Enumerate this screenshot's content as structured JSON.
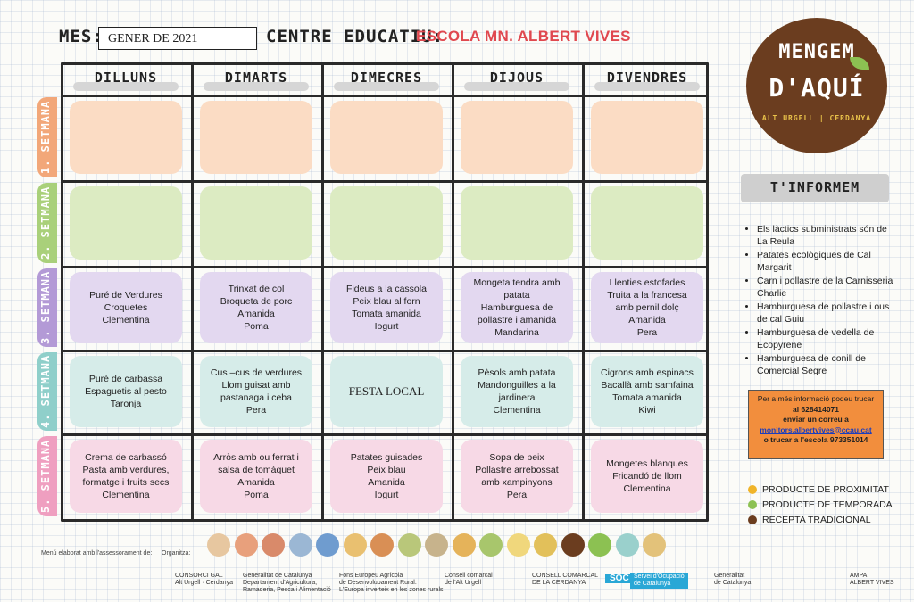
{
  "header": {
    "mes_label": "MES:",
    "mes_value": "GENER DE 2021",
    "centre_label": "CENTRE EDUCATIU:",
    "school_name": "ESCOLA MN. ALBERT VIVES"
  },
  "days": [
    "DILLUNS",
    "DIMARTS",
    "DIMECRES",
    "DIJOUS",
    "DIVENDRES"
  ],
  "weeks": [
    {
      "label": "1. SETMANA",
      "color": "#f2a779",
      "cell_color": "#fbdcc4",
      "menus": [
        "",
        "",
        "",
        "",
        ""
      ]
    },
    {
      "label": "2. SETMANA",
      "color": "#a9d07a",
      "cell_color": "#dcebc2",
      "menus": [
        "",
        "",
        "",
        "",
        ""
      ]
    },
    {
      "label": "3. SETMANA",
      "color": "#b39ad6",
      "cell_color": "#e3d8f0",
      "menus": [
        "Puré de Verdures\nCroquetes\nClementina",
        "Trinxat de col\nBroqueta de porc\nAmanida\nPoma",
        "Fideus a la cassola\nPeix blau al forn\nTomata amanida\nIogurt",
        "Mongeta tendra amb\npatata\nHamburguesa de\npollastre i amanida\nMandarina",
        "Llenties estofades\nTruita a la francesa\namb pernil dolç\nAmanida\nPera"
      ]
    },
    {
      "label": "4. SETMANA",
      "color": "#8fcfca",
      "cell_color": "#d6ece9",
      "menus": [
        "Puré de carbassa\nEspaguetis al pesto\nTaronja",
        "Cus –cus de verdures\nLlom guisat amb\npastanaga i ceba\nPera",
        "FESTA LOCAL",
        "Pèsols amb patata\nMandonguilles a la\njardinera\nClementina",
        "Cigrons amb espinacs\nBacallà amb samfaina\nTomata amanida\nKiwi"
      ]
    },
    {
      "label": "5. SETMANA",
      "color": "#ef9fc0",
      "cell_color": "#f7d9e6",
      "menus": [
        "Crema de carbassó\nPasta amb verdures,\nformatge i fruits secs\nClementina",
        "Arròs amb ou ferrat i\nsalsa de tomàquet\nAmanida\nPoma",
        "Patates guisades\nPeix blau\nAmanida\nIogurt",
        "Sopa de peix\nPollastre arrebossat\namb xampinyons\nPera",
        "Mongetes blanques\nFricandó de llom\nClementina"
      ]
    }
  ],
  "logo": {
    "line1": "MENGEM",
    "line2": "D'AQUÍ",
    "line3": "ALT URGELL | CERDANYA"
  },
  "info": {
    "title": "T'INFORMEM",
    "items": [
      "Els làctics subministrats són de La Reula",
      "Patates ecològiques de Cal Margarit",
      "Carn i pollastre de la Carnisseria Charlie",
      "Hamburguesa de pollastre i ous de cal Guiu",
      "Hamburguesa de vedella de Ecopyrene",
      "Hamburguesa de conill de Comercial Segre"
    ]
  },
  "contact": {
    "line1": "Per a més informació podeu trucar",
    "line2": "al 628414071",
    "line3": "enviar un correu a",
    "email": "monitors.albertvives@ccau.cat",
    "line4": "o trucar a l'escola 973351014"
  },
  "legend": [
    {
      "text": "PRODUCTE DE PROXIMITAT",
      "color": "#f0b429",
      "num": "1"
    },
    {
      "text": "PRODUCTE DE TEMPORADA",
      "color": "#8cc152",
      "num": "2"
    },
    {
      "text": "RECEPTA TRADICIONAL",
      "color": "#6b3d1f",
      "num": "3"
    }
  ],
  "footer": {
    "note": "Menú elaborat amb l'assessorament de:",
    "organitza": "Organitza:",
    "icon_colors": [
      "#e7c7a0",
      "#e8a07c",
      "#d98a6a",
      "#9bb7d4",
      "#6f9ccf",
      "#e9c070",
      "#d98f55",
      "#b9c77a",
      "#c7b38c",
      "#e5b35a",
      "#a8c66c",
      "#f0d77c",
      "#e2c05a",
      "#6b3d1f",
      "#8cc152",
      "#9ad0cc",
      "#e3c27a"
    ],
    "logos": [
      "CONSORCI GAL\nAlt Urgell · Cerdanya",
      "Generalitat de Catalunya\nDepartament d'Agricultura,\nRamaderia, Pesca i Alimentació",
      "Fons Europeu Agrícola\nde Desenvolupament Rural:\nL'Europa inverteix en les zones rurals",
      "Consell comarcal\nde l'Alt Urgell",
      "CONSELL COMARCAL\nDE LA CERDANYA",
      "SOC",
      "Servei d'Ocupació\nde Catalunya",
      "Generalitat\nde Catalunya",
      "AMPA\nALBERT VIVES"
    ]
  }
}
